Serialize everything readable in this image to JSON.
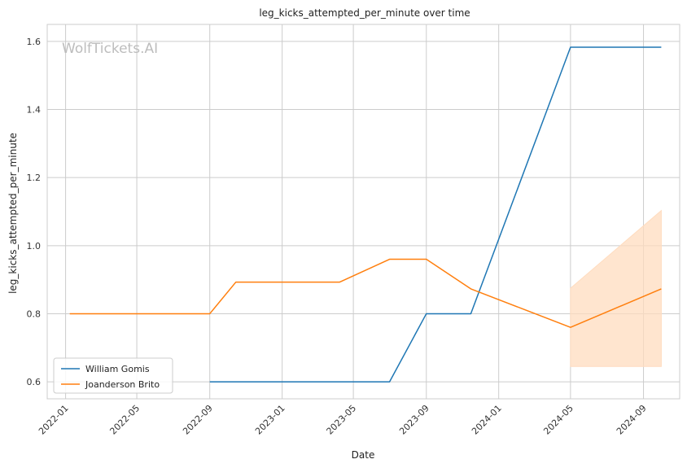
{
  "watermark": "WolfTickets.AI",
  "chart_data": {
    "type": "line",
    "title": "leg_kicks_attempted_per_minute over time",
    "xlabel": "Date",
    "ylabel": "leg_kicks_attempted_per_minute",
    "x_axis_type": "date",
    "xlim": [
      "2021-12-01",
      "2024-11-01"
    ],
    "ylim": [
      0.55,
      1.65
    ],
    "x_ticks": [
      "2022-01",
      "2022-05",
      "2022-09",
      "2023-01",
      "2023-05",
      "2023-09",
      "2024-01",
      "2024-05",
      "2024-09"
    ],
    "y_ticks": [
      "0.6",
      "0.8",
      "1.0",
      "1.2",
      "1.4",
      "1.6"
    ],
    "grid": true,
    "legend_position": "lower-left",
    "series": [
      {
        "name": "William Gomis",
        "color": "#1f77b4",
        "points": [
          {
            "x": "2022-09-01",
            "y": 0.6
          },
          {
            "x": "2023-07-01",
            "y": 0.6
          },
          {
            "x": "2023-09-01",
            "y": 0.8
          },
          {
            "x": "2023-11-15",
            "y": 0.8
          },
          {
            "x": "2024-05-01",
            "y": 1.583
          },
          {
            "x": "2024-10-01",
            "y": 1.583
          }
        ]
      },
      {
        "name": "Joanderson Brito",
        "color": "#ff7f0e",
        "band_color": "#ffdcbf",
        "points": [
          {
            "x": "2022-01-08",
            "y": 0.8
          },
          {
            "x": "2022-09-01",
            "y": 0.8
          },
          {
            "x": "2022-10-15",
            "y": 0.893
          },
          {
            "x": "2023-04-08",
            "y": 0.893
          },
          {
            "x": "2023-07-01",
            "y": 0.96
          },
          {
            "x": "2023-09-01",
            "y": 0.96
          },
          {
            "x": "2023-11-15",
            "y": 0.873
          },
          {
            "x": "2024-05-01",
            "y": 0.76
          },
          {
            "x": "2024-10-01",
            "y": 0.873
          }
        ],
        "band": [
          {
            "x": "2024-05-01",
            "low": 0.645,
            "high": 0.875
          },
          {
            "x": "2024-10-01",
            "low": 0.645,
            "high": 1.103
          }
        ]
      }
    ]
  }
}
